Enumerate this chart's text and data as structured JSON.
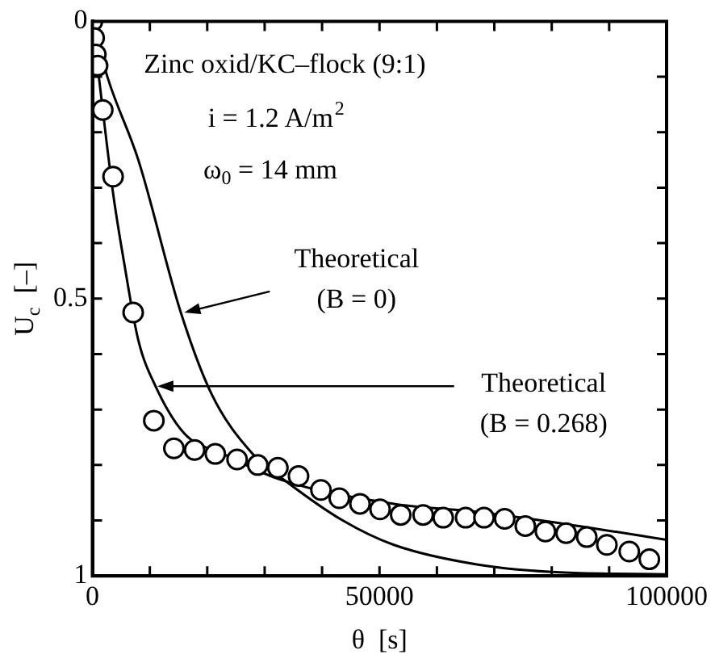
{
  "chart_data": {
    "type": "scatter",
    "xlabel": "θ  [s]",
    "ylabel": "U$_{c}$  [–]",
    "xlim": [
      0,
      100000
    ],
    "ylim": [
      1,
      0
    ],
    "xticks": [
      0,
      {
        "value": 10000,
        "label": null
      },
      {
        "value": 20000,
        "label": null
      },
      {
        "value": 30000,
        "label": null
      },
      {
        "value": 40000,
        "label": null
      },
      50000,
      {
        "value": 60000,
        "label": null
      },
      {
        "value": 70000,
        "label": null
      },
      {
        "value": 80000,
        "label": null
      },
      {
        "value": 90000,
        "label": null
      },
      100000
    ],
    "yticks": [
      1,
      {
        "value": 0.9,
        "label": null
      },
      {
        "value": 0.8,
        "label": null
      },
      {
        "value": 0.7,
        "label": null
      },
      {
        "value": 0.6,
        "label": null
      },
      0.5,
      {
        "value": 0.4,
        "label": null
      },
      {
        "value": 0.3,
        "label": null
      },
      {
        "value": 0.2,
        "label": null
      },
      {
        "value": 0.1,
        "label": null
      },
      0
    ],
    "grid": false,
    "legend": false,
    "annotations": [
      "Zinc oxid/KC–flock (9:1)",
      "i = 1.2 A/m$^{2}$",
      "ω$_{0}$ = 14 mm",
      {
        "text": "Theoretical\n(B = 0)",
        "x": 16000,
        "y": 0.525
      },
      {
        "text": "Theoretical\n(B = 0.268)",
        "x": 11300,
        "y": 0.658
      }
    ],
    "series": [
      {
        "marker": "circle",
        "color": "#000000",
        "x": [
          0,
          300,
          600,
          900,
          1800,
          3600,
          7100,
          10700,
          14200,
          17800,
          21400,
          25200,
          28800,
          32300,
          35900,
          39800,
          43000,
          46600,
          50100,
          53700,
          57600,
          61100,
          65000,
          68200,
          71800,
          75400,
          78900,
          82500,
          86100,
          89600,
          93500,
          97000
        ],
        "values": [
          0,
          0.03,
          0.06,
          0.08,
          0.16,
          0.28,
          0.525,
          0.72,
          0.77,
          0.773,
          0.78,
          0.79,
          0.8,
          0.805,
          0.82,
          0.845,
          0.86,
          0.87,
          0.88,
          0.89,
          0.89,
          0.895,
          0.895,
          0.895,
          0.897,
          0.91,
          0.92,
          0.923,
          0.93,
          0.944,
          0.956,
          0.97
        ]
      },
      {
        "type": "line",
        "marker": "none",
        "color": "#000000",
        "x": [
          0,
          2700,
          8000,
          15400,
          20800,
          27900,
          33800,
          43600,
          52500,
          67400,
          82200,
          100000
        ],
        "values": [
          0,
          0.103,
          0.25,
          0.525,
          0.673,
          0.78,
          0.83,
          0.9,
          0.944,
          0.98,
          0.994,
          0.997
        ]
      },
      {
        "type": "line",
        "marker": "none",
        "color": "#000000",
        "x": [
          0,
          1500,
          3600,
          5600,
          8000,
          11000,
          16000,
          22800,
          32600,
          52500,
          67400,
          82200,
          100000
        ],
        "values": [
          0,
          0.133,
          0.31,
          0.44,
          0.575,
          0.658,
          0.743,
          0.78,
          0.826,
          0.87,
          0.885,
          0.906,
          0.935
        ]
      }
    ]
  }
}
